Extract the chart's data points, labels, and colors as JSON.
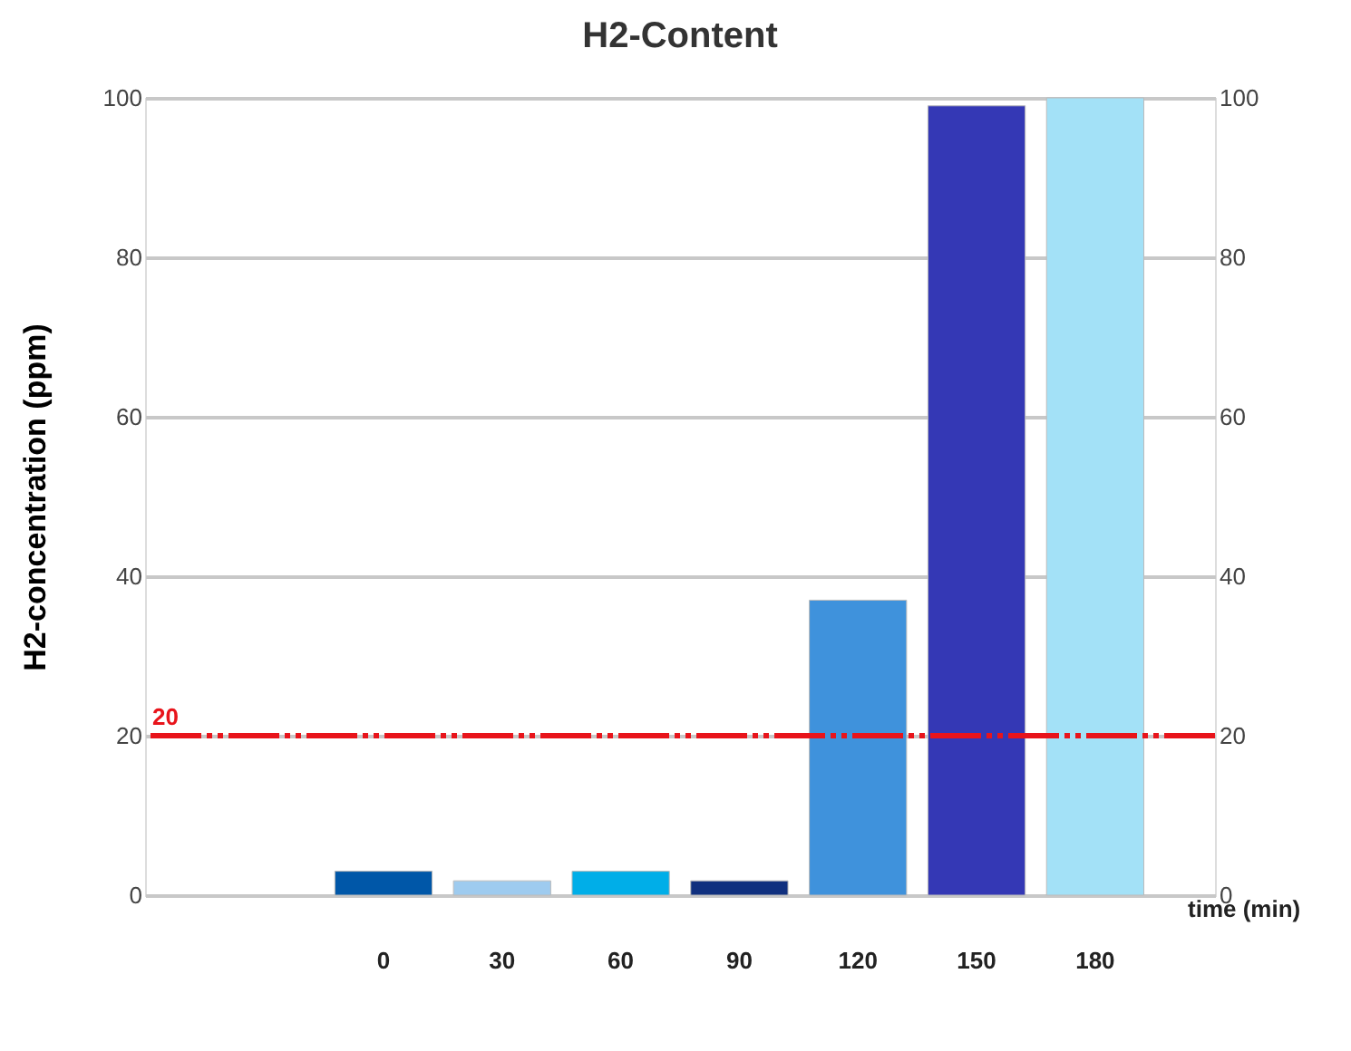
{
  "chart_data": {
    "type": "bar",
    "title": "H2-Content",
    "xlabel": "time (min)",
    "ylabel": "H2-concentration (ppm)",
    "categories": [
      null,
      "0",
      "30",
      "60",
      "90",
      "120",
      "150",
      "180"
    ],
    "values": [
      null,
      3,
      1.8,
      3,
      1.8,
      37,
      99,
      100
    ],
    "colors": [
      "#ffffff",
      "#0057a8",
      "#9ecbef",
      "#00aee8",
      "#10307f",
      "#3f92dc",
      "#3438b5",
      "#a3e1f7"
    ],
    "ylim": [
      0,
      100
    ],
    "yticks": [
      0,
      20,
      40,
      60,
      80,
      100
    ],
    "y2lim": [
      0,
      100
    ],
    "y2ticks": [
      0,
      20,
      40,
      60,
      80,
      100
    ],
    "grid": "y",
    "ref_lines": [
      {
        "axis": "y",
        "value": 20,
        "label": "20",
        "color": "#e8141b",
        "line_style": "dashed"
      }
    ]
  }
}
